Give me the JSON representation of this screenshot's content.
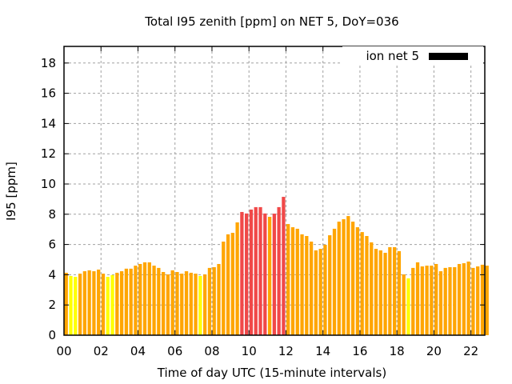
{
  "chart_data": {
    "type": "bar",
    "title": "Total I95 zenith [ppm] on NET 5, DoY=036",
    "xlabel": "Time of day UTC (15-minute intervals)",
    "ylabel": "I95 [ppm]",
    "legend": {
      "label": "ion net 5",
      "placement": "top-right",
      "color": "#000000"
    },
    "xlim": [
      0,
      22.75
    ],
    "ylim": [
      0,
      19.1
    ],
    "xticks": [
      0,
      2,
      4,
      6,
      8,
      10,
      12,
      14,
      16,
      18,
      20,
      22
    ],
    "xtick_labels": [
      "00",
      "02",
      "04",
      "06",
      "08",
      "10",
      "12",
      "14",
      "16",
      "18",
      "20",
      "22"
    ],
    "yticks": [
      0,
      2,
      4,
      6,
      8,
      10,
      12,
      14,
      16,
      18
    ],
    "ytick_labels": [
      "0",
      "2",
      "4",
      "6",
      "8",
      "10",
      "12",
      "14",
      "16",
      "18"
    ],
    "grid": true,
    "interval_hours": 0.25,
    "color_thresholds": {
      "low": 4,
      "high": 8
    },
    "colors": {
      "low": "#ffff00",
      "mid": "#ffa500",
      "high": "#f04848"
    },
    "values": [
      4.13,
      3.92,
      3.86,
      4.07,
      4.23,
      4.29,
      4.23,
      4.34,
      4.07,
      3.86,
      3.98,
      4.13,
      4.23,
      4.4,
      4.4,
      4.6,
      4.71,
      4.82,
      4.82,
      4.6,
      4.45,
      4.18,
      4.02,
      4.29,
      4.18,
      4.07,
      4.23,
      4.13,
      4.07,
      3.92,
      4.02,
      4.45,
      4.5,
      4.71,
      6.19,
      6.67,
      6.77,
      7.46,
      8.15,
      8.05,
      8.31,
      8.47,
      8.47,
      8.05,
      7.83,
      8.04,
      8.47,
      9.15,
      7.35,
      7.14,
      7.04,
      6.67,
      6.56,
      6.19,
      5.61,
      5.71,
      5.98,
      6.61,
      7.04,
      7.51,
      7.67,
      7.88,
      7.51,
      7.14,
      6.82,
      6.56,
      6.14,
      5.71,
      5.61,
      5.45,
      5.82,
      5.82,
      5.56,
      4.02,
      3.76,
      4.45,
      4.82,
      4.55,
      4.6,
      4.6,
      4.71,
      4.23,
      4.45,
      4.5,
      4.5,
      4.71,
      4.76,
      4.87,
      4.45,
      4.55,
      4.66,
      4.6
    ]
  }
}
